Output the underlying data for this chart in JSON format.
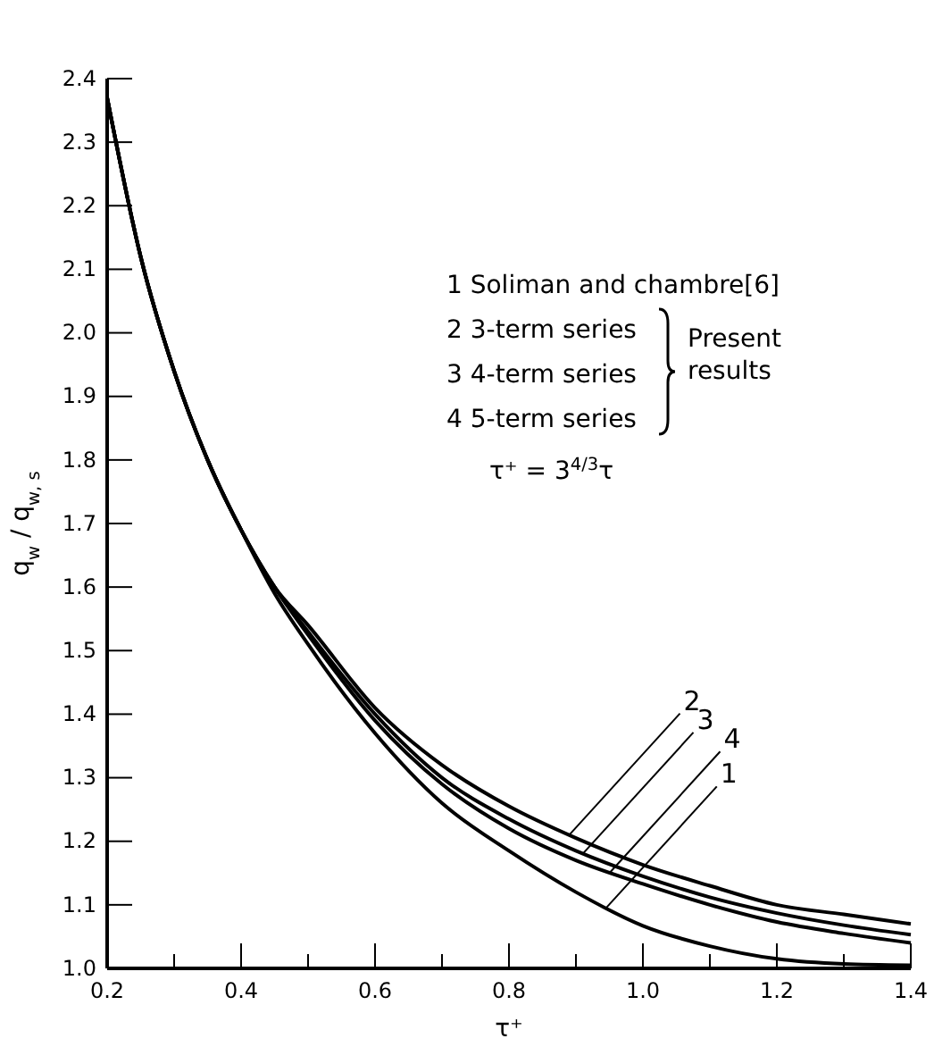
{
  "chart_data": {
    "type": "line",
    "xlabel": "τ⁺",
    "ylabel": "q$_{w}$ / q$_{w, s}$",
    "xlim": [
      0.2,
      1.4
    ],
    "ylim": [
      1.0,
      2.4
    ],
    "xticks": [
      {
        "value": 0.2,
        "label": "0.2"
      },
      {
        "value": 0.3,
        "label": null
      },
      {
        "value": 0.4,
        "label": "0.4"
      },
      {
        "value": 0.5,
        "label": null
      },
      {
        "value": 0.6,
        "label": "0.6"
      },
      {
        "value": 0.7,
        "label": null
      },
      {
        "value": 0.8,
        "label": "0.8"
      },
      {
        "value": 0.9,
        "label": null
      },
      {
        "value": 1.0,
        "label": "1.0"
      },
      {
        "value": 1.1,
        "label": null
      },
      {
        "value": 1.2,
        "label": "1.2"
      },
      {
        "value": 1.3,
        "label": null
      },
      {
        "value": 1.4,
        "label": "1.4"
      }
    ],
    "yticks": [
      {
        "value": 1.0,
        "label": "1.0"
      },
      {
        "value": 1.1,
        "label": "1.1"
      },
      {
        "value": 1.2,
        "label": "1.2"
      },
      {
        "value": 1.3,
        "label": "1.3"
      },
      {
        "value": 1.4,
        "label": "1.4"
      },
      {
        "value": 1.5,
        "label": "1.5"
      },
      {
        "value": 1.6,
        "label": "1.6"
      },
      {
        "value": 1.7,
        "label": "1.7"
      },
      {
        "value": 1.8,
        "label": "1.8"
      },
      {
        "value": 1.9,
        "label": "1.9"
      },
      {
        "value": 2.0,
        "label": "2.0"
      },
      {
        "value": 2.1,
        "label": "2.1"
      },
      {
        "value": 2.2,
        "label": "2.2"
      },
      {
        "value": 2.3,
        "label": "2.3"
      },
      {
        "value": 2.4,
        "label": "2.4"
      }
    ],
    "grid": false,
    "marker": "none",
    "line_style": "solid",
    "x": [
      0.2,
      0.25,
      0.3,
      0.35,
      0.4,
      0.45,
      0.5,
      0.6,
      0.7,
      0.8,
      0.9,
      1.0,
      1.1,
      1.2,
      1.3,
      1.4
    ],
    "series": [
      {
        "color": "#000000",
        "values": [
          2.37,
          2.12,
          1.94,
          1.8,
          1.69,
          1.59,
          1.51,
          1.37,
          1.26,
          1.185,
          1.12,
          1.067,
          1.035,
          1.015,
          1.007,
          1.005
        ]
      },
      {
        "color": "#000000",
        "values": [
          2.37,
          2.12,
          1.94,
          1.8,
          1.69,
          1.6,
          1.54,
          1.41,
          1.32,
          1.255,
          1.205,
          1.163,
          1.13,
          1.1,
          1.085,
          1.07
        ]
      },
      {
        "color": "#000000",
        "values": [
          2.37,
          2.12,
          1.94,
          1.8,
          1.69,
          1.6,
          1.53,
          1.4,
          1.3,
          1.235,
          1.185,
          1.145,
          1.112,
          1.087,
          1.068,
          1.053
        ]
      },
      {
        "color": "#000000",
        "values": [
          2.37,
          2.12,
          1.94,
          1.8,
          1.69,
          1.6,
          1.525,
          1.39,
          1.29,
          1.22,
          1.17,
          1.133,
          1.1,
          1.073,
          1.055,
          1.04
        ]
      }
    ],
    "annotations": [
      {
        "text": "2",
        "x": 0.89,
        "y": 1.21
      },
      {
        "text": "3",
        "x": 0.91,
        "y": 1.18
      },
      {
        "text": "4",
        "x": 0.95,
        "y": 1.15
      },
      {
        "text": "1",
        "x": 0.945,
        "y": 1.095
      },
      "1  Soliman and chambre[6]",
      "2  3-term series",
      "3  4-term series",
      "4  5-term series",
      "Present results",
      "τ⁺ = 3$^{4/3}$τ"
    ]
  }
}
